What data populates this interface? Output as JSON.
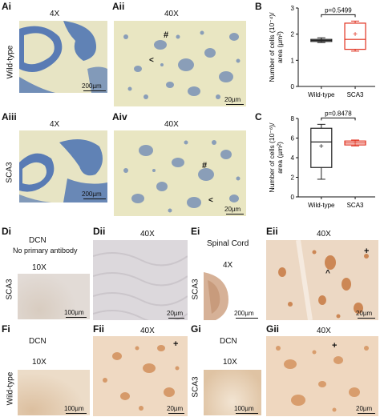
{
  "panels": {
    "Ai": {
      "label": "Ai",
      "mag": "4X",
      "scale": "200µm"
    },
    "Aii": {
      "label": "Aii",
      "mag": "40X",
      "scale": "20µm",
      "marks": [
        "#",
        "<"
      ]
    },
    "Aiii": {
      "label": "Aiii",
      "mag": "4X",
      "scale": "200µm"
    },
    "Aiv": {
      "label": "Aiv",
      "mag": "40X",
      "scale": "20µm",
      "marks": [
        "#",
        "<"
      ]
    },
    "Di": {
      "label": "Di",
      "title": "DCN",
      "subtitle": "No primary antibody",
      "mag": "10X",
      "scale": "100µm"
    },
    "Dii": {
      "label": "Dii",
      "mag": "40X",
      "scale": "20µm"
    },
    "Ei": {
      "label": "Ei",
      "title": "Spinal Cord",
      "mag": "4X",
      "scale": "200µm"
    },
    "Eii": {
      "label": "Eii",
      "mag": "40X",
      "scale": "20µm",
      "marks": [
        "^",
        "+"
      ]
    },
    "Fi": {
      "label": "Fi",
      "title": "DCN",
      "mag": "10X",
      "scale": "100µm"
    },
    "Fii": {
      "label": "Fii",
      "mag": "40X",
      "scale": "20µm",
      "marks": [
        "+"
      ]
    },
    "Gi": {
      "label": "Gi",
      "title": "DCN",
      "mag": "10X",
      "scale": "100µm"
    },
    "Gii": {
      "label": "Gii",
      "mag": "40X",
      "scale": "20µm",
      "marks": [
        "+"
      ]
    },
    "B": {
      "label": "B"
    },
    "C": {
      "label": "C"
    }
  },
  "row_labels": {
    "wild_type": "Wild-type",
    "sca3_a": "SCA3",
    "sca3_d": "SCA3",
    "sca3_e": "SCA3",
    "wild_type_f": "Wild-type",
    "sca3_g": "SCA3"
  },
  "colors": {
    "nissl_bg": "#e9e6c2",
    "nissl_cell": "#6b87b5",
    "tissue_blue": "#3d68b0",
    "ihc_bg": "#eedfcc",
    "ihc_cell": "#c88a56",
    "neg_bg": "#ddd8d8",
    "sca3_box": "#e0301e",
    "wt_box": "#222222"
  },
  "chart_data": [
    {
      "type": "box",
      "panel": "B",
      "ylabel": "Number of cells (10⁻⁴)/ area (µm²)",
      "ylim": [
        0,
        3
      ],
      "yticks": [
        0,
        1,
        2,
        3
      ],
      "categories": [
        "Wild-type",
        "SCA3"
      ],
      "annotation": "p=0.5499",
      "series": [
        {
          "name": "Wild-type",
          "min": 1.68,
          "q1": 1.72,
          "median": 1.76,
          "q3": 1.8,
          "max": 1.86,
          "mean": 1.76
        },
        {
          "name": "SCA3",
          "min": 1.35,
          "q1": 1.42,
          "median": 1.8,
          "q3": 2.42,
          "max": 2.5,
          "mean": 2.0
        }
      ]
    },
    {
      "type": "box",
      "panel": "C",
      "ylabel": "Number of cells (10⁻⁶)/ area (µm²)",
      "ylim": [
        0,
        8
      ],
      "yticks": [
        0,
        2,
        4,
        6,
        8
      ],
      "categories": [
        "Wild-type",
        "SCA3"
      ],
      "annotation": "p=0.8478",
      "series": [
        {
          "name": "Wild-type",
          "min": 1.8,
          "q1": 3.0,
          "median": 5.6,
          "q3": 7.0,
          "max": 7.4,
          "mean": 5.2
        },
        {
          "name": "SCA3",
          "min": 5.2,
          "q1": 5.3,
          "median": 5.5,
          "q3": 5.7,
          "max": 5.8,
          "mean": 5.5
        }
      ]
    }
  ]
}
